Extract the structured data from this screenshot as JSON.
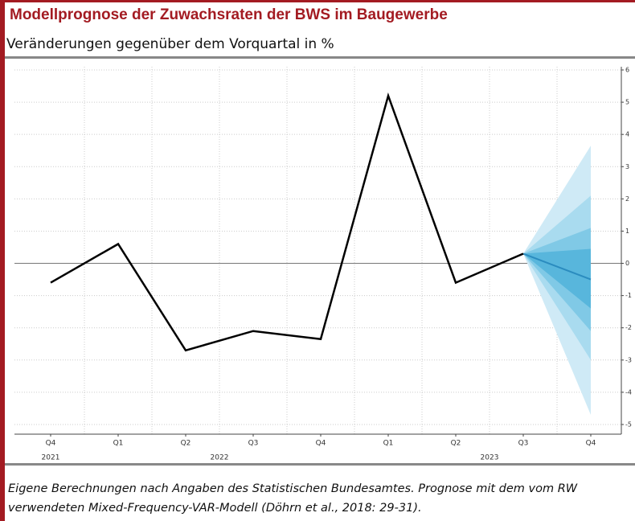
{
  "chart_data": {
    "type": "line",
    "title": "Modellprognose der Zuwachsraten der BWS im Baugewerbe",
    "subtitle": "Veränderungen gegenüber dem Vorquartal in %",
    "categories": [
      "Q4",
      "Q1",
      "Q2",
      "Q3",
      "Q4",
      "Q1",
      "Q2",
      "Q3",
      "Q4"
    ],
    "years": [
      "2021",
      "2022",
      "2022",
      "2022",
      "2022",
      "2023",
      "2023",
      "2023",
      "2023"
    ],
    "values": [
      -0.6,
      0.6,
      -2.7,
      -2.1,
      -2.35,
      5.2,
      -0.6,
      0.3,
      null
    ],
    "color": "#000000",
    "forecast": {
      "center": -0.5,
      "color": "#2b8cbf",
      "bands": [
        {
          "upper": 3.65,
          "lower": -4.7,
          "color": "#cfeaf6"
        },
        {
          "upper": 2.1,
          "lower": -3.0,
          "color": "#a9dbef"
        },
        {
          "upper": 1.1,
          "lower": -2.1,
          "color": "#80c9e6"
        },
        {
          "upper": 0.45,
          "lower": -1.4,
          "color": "#58b6dc"
        }
      ]
    },
    "ylim": [
      -5.3,
      6.1
    ],
    "yticks": [
      6,
      5,
      4,
      3,
      2,
      1,
      0,
      -1,
      -2,
      -3,
      -4,
      -5
    ],
    "grid": true,
    "note": [
      "Eigene Berechnungen nach Angaben des Statistischen Bundesamtes. Prognose mit dem vom RW",
      "verwendeten Mixed-Frequency-VAR-Modell (Döhrn et al., 2018: 29-31)."
    ]
  }
}
